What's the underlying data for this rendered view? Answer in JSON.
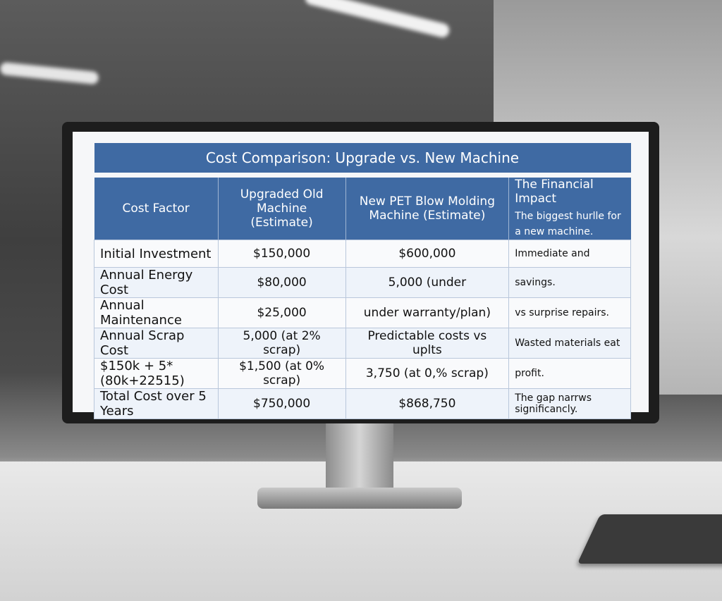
{
  "table": {
    "title": "Cost Comparison: Upgrade vs. New Machine",
    "header": [
      "Cost Factor",
      "Upgraded Old Machine (Estimate)",
      "New PET Blow Molding Machine (Estimate)",
      "The Financial Impact"
    ],
    "header_note": "The biggest hurlle for a new machine.",
    "rows": [
      [
        "Initial Investment",
        "$150,000",
        "$600,000",
        "Immediate and"
      ],
      [
        "Annual Energy Cost",
        "$80,000",
        "5,000 (under",
        "savings."
      ],
      [
        "Annual Maintenance",
        "$25,000",
        "under warranty/plan)",
        "vs surprise repairs."
      ],
      [
        "Annual Scrap Cost",
        "5,000 (at 2% scrap)",
        "Predictable costs vs uplts",
        "Wasted materials eat"
      ],
      [
        "$150k + 5*(80k+22515)",
        "$1,500 (at 0% scrap)",
        "3,750 (at 0,% scrap)",
        "profit."
      ],
      [
        "Total Cost over 5 Years",
        "$750,000",
        "$868,750",
        "The gap narrws significancly."
      ]
    ]
  }
}
